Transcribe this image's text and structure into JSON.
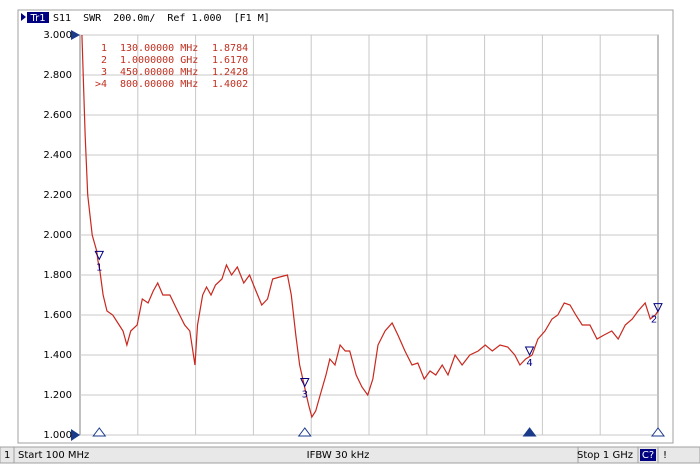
{
  "header": {
    "trace": "Tr1",
    "text": "S11  SWR  200.0m/  Ref 1.000  [F1 M]"
  },
  "chart_data": {
    "type": "line",
    "color": "#c8281e",
    "grid": true,
    "xlim": [
      100,
      1000
    ],
    "ylim": [
      1,
      3
    ],
    "yticks": [
      {
        "value": 1,
        "label": "1.000"
      },
      {
        "value": 1.2,
        "label": "1.200"
      },
      {
        "value": 1.4,
        "label": "1.400"
      },
      {
        "value": 1.6,
        "label": "1.600"
      },
      {
        "value": 1.8,
        "label": "1.800"
      },
      {
        "value": 2,
        "label": "2.000"
      },
      {
        "value": 2.2,
        "label": "2.200"
      },
      {
        "value": 2.4,
        "label": "2.400"
      },
      {
        "value": 2.6,
        "label": "2.600"
      },
      {
        "value": 2.8,
        "label": "2.800"
      },
      {
        "value": 3,
        "label": "3.000"
      }
    ],
    "x": [
      103,
      108,
      112,
      119,
      126,
      128,
      131,
      136,
      142,
      151,
      159,
      167,
      173,
      179,
      189,
      197,
      206,
      214,
      221,
      229,
      240,
      252,
      263,
      271,
      279,
      283,
      291,
      297,
      304,
      311,
      321,
      328,
      336,
      345,
      355,
      364,
      374,
      383,
      392,
      400,
      411,
      423,
      429,
      436,
      442,
      449,
      456,
      461,
      467,
      474,
      483,
      489,
      497,
      505,
      513,
      520,
      530,
      539,
      548,
      556,
      564,
      575,
      586,
      595,
      606,
      617,
      626,
      636,
      645,
      654,
      664,
      673,
      684,
      695,
      707,
      720,
      731,
      742,
      754,
      766,
      777,
      785,
      794,
      804,
      813,
      824,
      835,
      844,
      854,
      863,
      872,
      882,
      894,
      905,
      916,
      928,
      938,
      949,
      960,
      969,
      980,
      988,
      996,
      1000
    ],
    "values": [
      3.0,
      2.5,
      2.2,
      2.0,
      1.92,
      1.87,
      1.82,
      1.7,
      1.62,
      1.6,
      1.56,
      1.52,
      1.45,
      1.52,
      1.55,
      1.68,
      1.66,
      1.72,
      1.76,
      1.7,
      1.7,
      1.62,
      1.55,
      1.52,
      1.35,
      1.55,
      1.7,
      1.74,
      1.7,
      1.75,
      1.78,
      1.85,
      1.8,
      1.84,
      1.76,
      1.8,
      1.72,
      1.65,
      1.68,
      1.78,
      1.79,
      1.8,
      1.7,
      1.5,
      1.35,
      1.25,
      1.15,
      1.09,
      1.12,
      1.2,
      1.3,
      1.38,
      1.35,
      1.45,
      1.42,
      1.42,
      1.3,
      1.24,
      1.2,
      1.28,
      1.45,
      1.52,
      1.56,
      1.5,
      1.42,
      1.35,
      1.36,
      1.28,
      1.32,
      1.3,
      1.35,
      1.3,
      1.4,
      1.35,
      1.4,
      1.42,
      1.45,
      1.42,
      1.45,
      1.44,
      1.4,
      1.35,
      1.38,
      1.4,
      1.48,
      1.52,
      1.58,
      1.6,
      1.66,
      1.65,
      1.6,
      1.55,
      1.55,
      1.48,
      1.5,
      1.52,
      1.48,
      1.55,
      1.58,
      1.62,
      1.66,
      1.58,
      1.6,
      1.62
    ],
    "markers": [
      {
        "id": "1",
        "row_id": "1",
        "x": 130,
        "stimulus": "130.00000 MHz",
        "value": 1.8784,
        "value_label": "1.8784"
      },
      {
        "id": "2",
        "row_id": "2",
        "x": 1000,
        "stimulus": "1.0000000 GHz",
        "value": 1.617,
        "value_label": "1.6170"
      },
      {
        "id": "3",
        "row_id": "3",
        "x": 450,
        "stimulus": "450.00000 MHz",
        "value": 1.2428,
        "value_label": "1.2428"
      },
      {
        "id": "4",
        "row_id": ">4",
        "x": 800,
        "stimulus": "800.00000 MHz",
        "value": 1.4002,
        "value_label": "1.4002",
        "active": true
      }
    ]
  },
  "status_bar": {
    "channel": "1",
    "start": "Start 100 MHz",
    "ifbw": "IFBW 30 kHz",
    "stop": "Stop 1 GHz",
    "cal": "C?",
    "alert": "!"
  }
}
